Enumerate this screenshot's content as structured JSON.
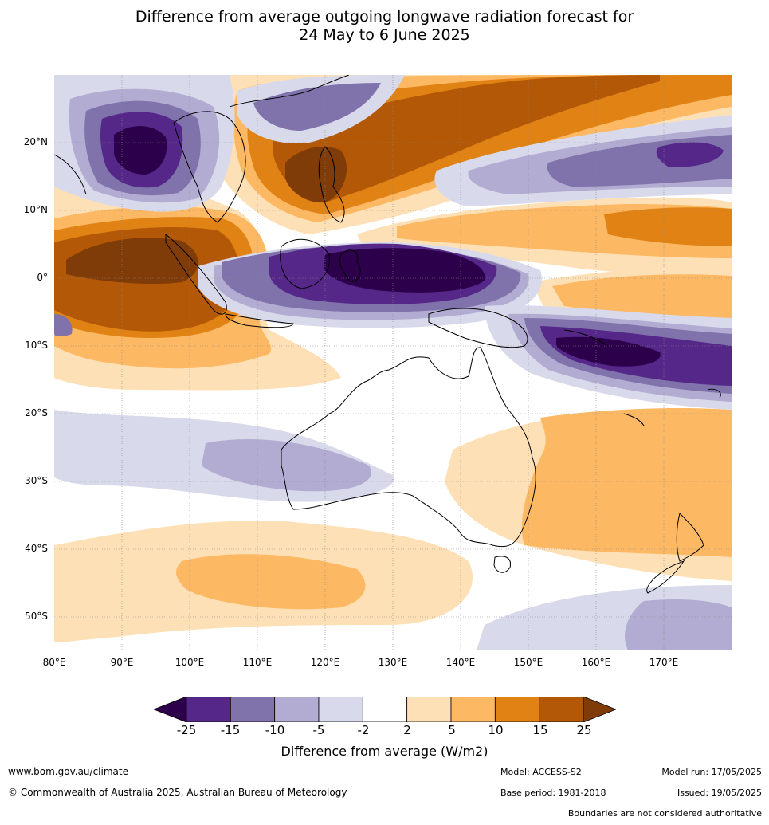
{
  "title_line1": "Difference from average outgoing longwave radiation forecast for",
  "title_line2": "24 May to 6 June 2025",
  "map": {
    "lat_labels": [
      "20°N",
      "10°N",
      "0°",
      "10°S",
      "20°S",
      "30°S",
      "40°S",
      "50°S"
    ],
    "lon_labels": [
      "80°E",
      "90°E",
      "100°E",
      "110°E",
      "120°E",
      "130°E",
      "140°E",
      "150°E",
      "160°E",
      "170°E"
    ],
    "lat_range": [
      -55,
      30
    ],
    "lon_range": [
      80,
      180
    ],
    "gridlines": true
  },
  "legend": {
    "title": "Difference from average (W/m2)",
    "tick_labels": [
      "-25",
      "-15",
      "-10",
      "-5",
      "-2",
      "2",
      "5",
      "10",
      "15",
      "25"
    ],
    "colors": [
      "#2d004b",
      "#542788",
      "#8073ac",
      "#b2abd2",
      "#d8daeb",
      "#ffffff",
      "#fee0b6",
      "#fdb863",
      "#e08214",
      "#b35806",
      "#7f3b08"
    ]
  },
  "footer": {
    "website": "www.bom.gov.au/climate",
    "copyright": "© Commonwealth of Australia 2025, Australian Bureau of Meteorology",
    "model": "Model: ACCESS-S2",
    "model_run": "Model run: 17/05/2025",
    "base_period": "Base period: 1981-2018",
    "issued": "Issued: 19/05/2025",
    "disclaimer": "Boundaries are not considered authoritative"
  }
}
